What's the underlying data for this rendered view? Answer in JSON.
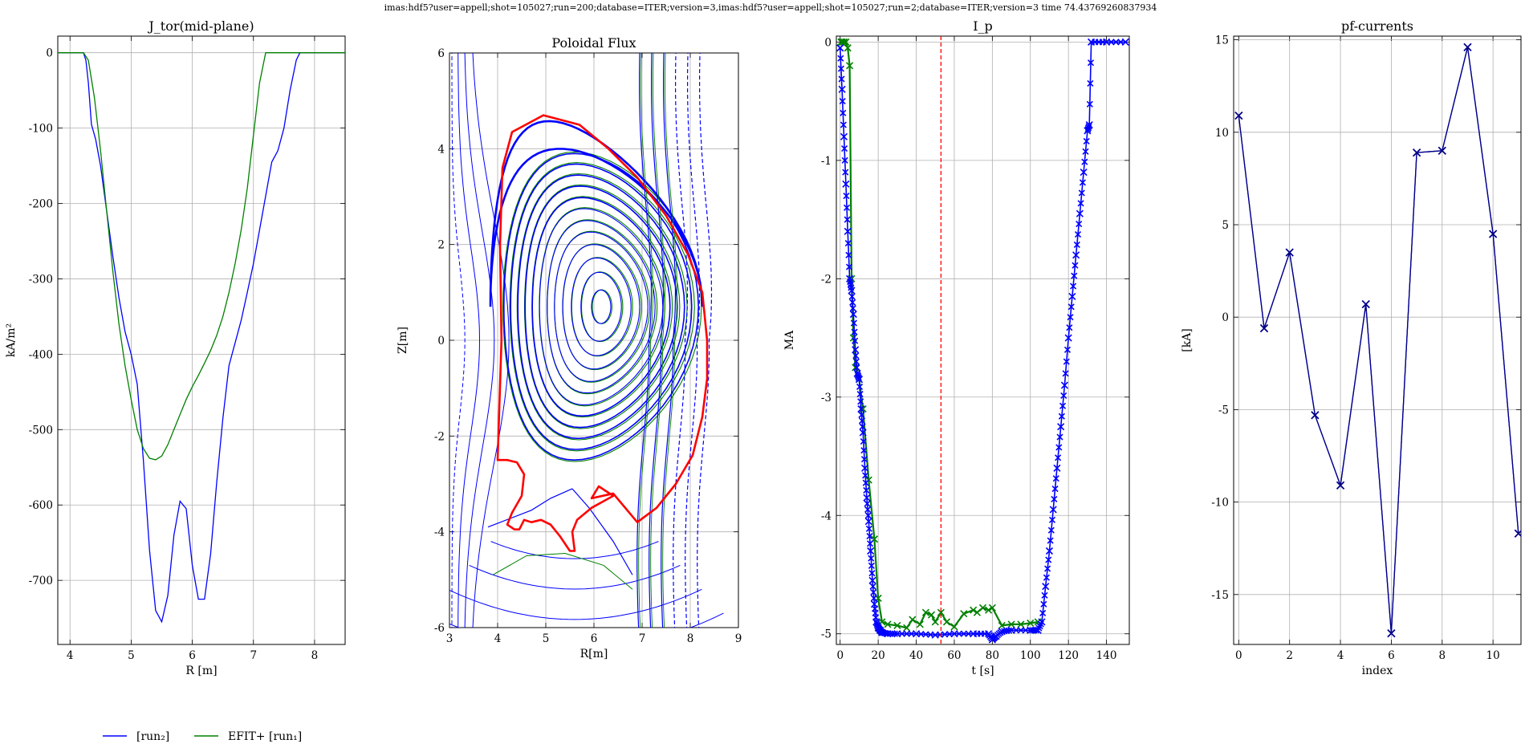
{
  "suptitle": "imas:hdf5?user=appell;shot=105027;run=200;database=ITER;version=3,imas:hdf5?user=appell;shot=105027;run=2;database=ITER;version=3 time 74.43769260837934",
  "colors": {
    "run2": "#0000ff",
    "efit": "#008000",
    "wall": "#ff0000",
    "marker_dark": "#000080",
    "time_line": "#ff0000",
    "grid": "#b0b0b0"
  },
  "legend": {
    "placement": "bottom-left",
    "entries": [
      {
        "label": "[run₂]",
        "color": "#0000ff"
      },
      {
        "label": "EFIT+ [run₁]",
        "color": "#008000"
      }
    ]
  },
  "chart_data": [
    {
      "type": "line",
      "title": "J_tor(mid-plane)",
      "xlabel": "R [m]",
      "ylabel": "kA/m²",
      "xlim": [
        3.8,
        8.5
      ],
      "ylim": [
        -785,
        22
      ],
      "xticks": [
        4,
        5,
        6,
        7,
        8
      ],
      "yticks": [
        0,
        -100,
        -200,
        -300,
        -400,
        -500,
        -600,
        -700
      ],
      "grid": true,
      "series": [
        {
          "legend": "run2",
          "color": "#0000ff",
          "x": [
            3.8,
            4.22,
            4.26,
            4.3,
            4.35,
            4.42,
            4.5,
            4.6,
            4.7,
            4.8,
            4.9,
            5.0,
            5.1,
            5.2,
            5.3,
            5.4,
            5.5,
            5.6,
            5.7,
            5.8,
            5.9,
            6.0,
            6.1,
            6.2,
            6.3,
            6.4,
            6.5,
            6.6,
            6.7,
            6.8,
            6.9,
            7.0,
            7.1,
            7.2,
            7.3,
            7.4,
            7.5,
            7.6,
            7.7,
            7.76,
            7.8,
            8.5
          ],
          "y": [
            0,
            0,
            -10,
            -40,
            -95,
            -115,
            -150,
            -210,
            -270,
            -325,
            -370,
            -400,
            -440,
            -540,
            -660,
            -740,
            -755,
            -720,
            -640,
            -595,
            -605,
            -680,
            -725,
            -725,
            -665,
            -570,
            -485,
            -415,
            -385,
            -355,
            -318,
            -280,
            -235,
            -190,
            -145,
            -130,
            -100,
            -50,
            -10,
            0,
            0,
            0
          ]
        },
        {
          "legend": "EFIT+ [run₁]",
          "color": "#008000",
          "x": [
            3.8,
            4.22,
            4.3,
            4.4,
            4.5,
            4.6,
            4.7,
            4.8,
            4.9,
            5.0,
            5.1,
            5.2,
            5.3,
            5.4,
            5.5,
            5.6,
            5.7,
            5.8,
            5.9,
            6.0,
            6.1,
            6.2,
            6.3,
            6.4,
            6.5,
            6.6,
            6.7,
            6.8,
            6.9,
            7.0,
            7.1,
            7.2,
            7.3,
            7.4,
            7.5,
            7.6,
            7.7,
            7.76,
            7.8,
            8.5
          ],
          "y": [
            0,
            0,
            -10,
            -60,
            -130,
            -210,
            -290,
            -360,
            -415,
            -460,
            -500,
            -525,
            -538,
            -540,
            -535,
            -520,
            -500,
            -480,
            -460,
            -443,
            -428,
            -412,
            -395,
            -375,
            -350,
            -318,
            -280,
            -235,
            -180,
            -110,
            -40,
            0,
            0,
            0,
            0,
            0,
            0,
            0,
            0,
            0
          ]
        }
      ]
    },
    {
      "type": "contour",
      "title": "Poloidal Flux",
      "xlabel": "R[m]",
      "ylabel": "Z[m]",
      "xlim": [
        3,
        9
      ],
      "ylim": [
        -6,
        6
      ],
      "xticks": [
        3,
        4,
        5,
        6,
        7,
        8,
        9
      ],
      "yticks": [
        -6,
        -4,
        -2,
        0,
        2,
        4,
        6
      ],
      "grid": true,
      "magnetic_axis": [
        6.15,
        0.7
      ],
      "closed_surfaces": {
        "center_r": 6.15,
        "center_z": 0.7,
        "radii_r": [
          0.2,
          0.42,
          0.62,
          0.8,
          0.97,
          1.12,
          1.28,
          1.43,
          1.58,
          1.73,
          1.88,
          2.02
        ],
        "radii_z": [
          0.35,
          0.72,
          1.02,
          1.3,
          1.56,
          1.8,
          2.05,
          2.28,
          2.52,
          2.75,
          2.98,
          3.2
        ]
      },
      "separatrix": {
        "outer_r": 2.2,
        "up_z": 3.3,
        "lo_z": -3.85,
        "x_point": [
          5.55,
          -3.1
        ]
      },
      "open_surfaces_outer_r": [
        7.45,
        7.7,
        7.95,
        8.2,
        8.45,
        8.7
      ],
      "wall_outline": {
        "r": [
          4.1,
          4.3,
          4.95,
          5.7,
          6.3,
          6.9,
          7.5,
          7.95,
          8.25,
          8.35,
          8.35,
          8.25,
          8.05,
          7.7,
          7.3,
          6.9,
          6.4,
          5.95,
          6.1,
          6.4,
          5.95,
          5.65,
          5.55,
          5.6,
          5.5,
          5.3,
          5.1,
          4.9,
          4.7,
          4.55,
          4.45,
          4.35,
          4.2,
          4.3,
          4.5,
          4.55,
          4.4,
          4.2,
          4.0,
          4.08,
          4.05,
          4.1
        ],
        "z": [
          3.6,
          4.35,
          4.7,
          4.5,
          4.0,
          3.4,
          2.6,
          1.8,
          1.0,
          0.0,
          -0.8,
          -1.6,
          -2.4,
          -3.0,
          -3.5,
          -3.8,
          -3.2,
          -3.3,
          -3.05,
          -3.25,
          -3.5,
          -3.75,
          -4.0,
          -4.4,
          -4.4,
          -4.1,
          -3.85,
          -3.75,
          -3.8,
          -3.75,
          -3.95,
          -3.95,
          -3.85,
          -3.6,
          -3.25,
          -2.8,
          -2.55,
          -2.5,
          -2.5,
          0.0,
          2.0,
          3.6
        ]
      }
    },
    {
      "type": "scatter",
      "title": "I_p",
      "xlabel": "t [s]",
      "ylabel": "MA",
      "xlim": [
        -2,
        152
      ],
      "ylim": [
        -5.09,
        0.05
      ],
      "xticks": [
        0,
        20,
        40,
        60,
        80,
        100,
        120,
        140
      ],
      "yticks": [
        0,
        -1,
        -2,
        -3,
        -4,
        -5
      ],
      "grid": true,
      "marker": "x",
      "time_marker": 53,
      "series": [
        {
          "legend": "run2",
          "color": "#0000ff",
          "t": [
            0,
            1,
            2,
            3,
            4,
            5,
            6,
            7,
            8,
            9,
            10,
            11,
            12,
            13,
            14,
            15,
            16,
            17,
            18,
            19,
            20,
            21,
            22,
            25,
            30,
            40,
            50,
            60,
            70,
            78,
            80,
            82,
            85,
            90,
            100,
            104,
            106,
            108,
            110,
            112,
            114,
            116,
            118,
            120,
            122,
            124,
            126,
            128,
            130,
            131,
            132,
            140,
            150
          ],
          "ip": [
            -0.05,
            -0.4,
            -0.8,
            -1.2,
            -1.6,
            -2.0,
            -2.1,
            -2.3,
            -2.6,
            -2.8,
            -2.85,
            -3.1,
            -3.3,
            -3.6,
            -3.85,
            -4.05,
            -4.3,
            -4.55,
            -4.75,
            -4.9,
            -4.95,
            -4.97,
            -4.99,
            -5.0,
            -5.0,
            -5.0,
            -5.01,
            -5.0,
            -5.0,
            -5.0,
            -5.05,
            -5.02,
            -4.98,
            -4.97,
            -4.97,
            -4.97,
            -4.9,
            -4.6,
            -4.3,
            -3.95,
            -3.6,
            -3.25,
            -2.9,
            -2.5,
            -2.15,
            -1.8,
            -1.45,
            -1.1,
            -0.75,
            -0.7,
            0.0,
            0.0,
            0.0
          ]
        },
        {
          "legend": "EFIT+ [run₁]",
          "color": "#008000",
          "t": [
            0.5,
            1,
            2,
            3,
            4,
            5,
            6,
            7,
            8,
            10,
            12,
            15,
            18,
            20,
            22,
            25,
            30,
            35,
            38,
            42,
            45,
            48,
            50,
            53,
            56,
            60,
            65,
            70,
            72,
            75,
            78,
            80,
            85,
            90,
            95,
            100,
            104
          ],
          "ip": [
            0.0,
            0.0,
            0.0,
            0.0,
            -0.05,
            -0.2,
            -2.0,
            -2.5,
            -2.75,
            -2.85,
            -3.1,
            -3.7,
            -4.2,
            -4.7,
            -4.9,
            -4.92,
            -4.93,
            -4.95,
            -4.88,
            -4.92,
            -4.82,
            -4.84,
            -4.9,
            -4.82,
            -4.9,
            -4.94,
            -4.83,
            -4.8,
            -4.82,
            -4.78,
            -4.8,
            -4.78,
            -4.93,
            -4.92,
            -4.92,
            -4.91,
            -4.9
          ]
        }
      ]
    },
    {
      "type": "line",
      "title": "pf-currents",
      "xlabel": "index",
      "ylabel": "[kA]",
      "xlim": [
        -0.2,
        11.1
      ],
      "ylim": [
        -17.7,
        15.2
      ],
      "xticks": [
        0,
        2,
        4,
        6,
        8,
        10
      ],
      "yticks": [
        15,
        10,
        5,
        0,
        -5,
        -10,
        -15
      ],
      "grid": true,
      "marker": "x",
      "series": [
        {
          "legend": "run2",
          "color": "#0000ff",
          "x": [
            0,
            1,
            2,
            3,
            4,
            5,
            6,
            7,
            8,
            9,
            10,
            11
          ],
          "y": [
            10.9,
            -0.6,
            3.5,
            -5.3,
            -9.1,
            0.7,
            -17.1,
            8.9,
            9.0,
            14.6,
            4.5,
            -11.7
          ]
        },
        {
          "legend": "EFIT+ [run₁]",
          "color": "#000080",
          "x": [
            0,
            1,
            2,
            3,
            4,
            5,
            6,
            7,
            8,
            9,
            10,
            11
          ],
          "y": [
            10.9,
            -0.6,
            3.5,
            -5.3,
            -9.1,
            0.7,
            -17.1,
            8.9,
            9.0,
            14.6,
            4.5,
            -11.7
          ]
        }
      ]
    }
  ]
}
